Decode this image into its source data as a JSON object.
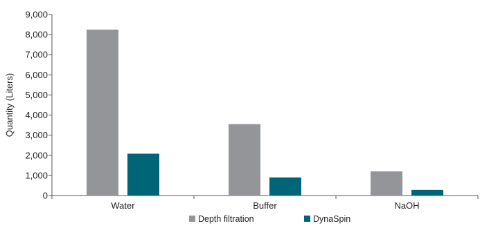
{
  "chart_data": {
    "type": "bar",
    "categories": [
      "Water",
      "Buffer",
      "NaOH"
    ],
    "series": [
      {
        "name": "Depth filtration",
        "values": [
          8250,
          3550,
          1200
        ],
        "color": "#939598"
      },
      {
        "name": "DynaSpin",
        "values": [
          2080,
          900,
          280
        ],
        "color": "#006677"
      }
    ],
    "title": "",
    "xlabel": "",
    "ylabel": "Quantity (Liters)",
    "ylim": [
      0,
      9000
    ],
    "yticks": [
      0,
      1000,
      2000,
      3000,
      4000,
      5000,
      6000,
      7000,
      8000,
      9000
    ],
    "ytick_labels": [
      "0",
      "1,000",
      "2,000",
      "3,000",
      "4,000",
      "5,000",
      "6,000",
      "7,000",
      "8,000",
      "9,000"
    ],
    "grid": false,
    "legend_position": "bottom-center"
  }
}
